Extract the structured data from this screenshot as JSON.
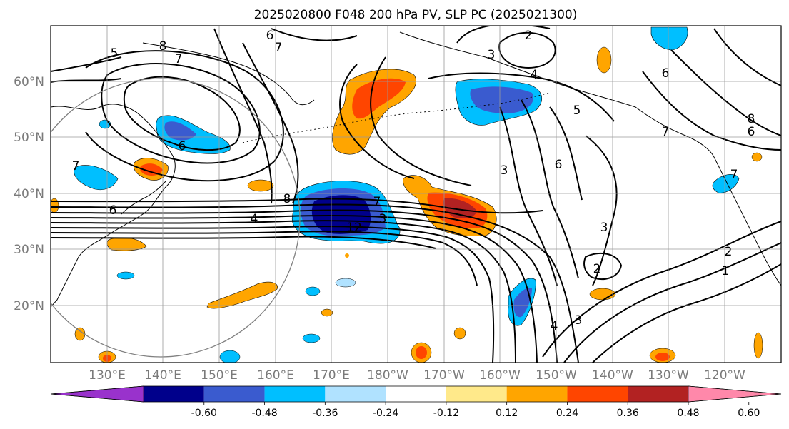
{
  "title": "2025020800 F048 200 hPa PV, SLP PC (2025021300)",
  "lat_labels": [
    "60°N",
    "50°N",
    "40°N",
    "30°N",
    "20°N"
  ],
  "lon_labels": [
    "130°E",
    "140°E",
    "150°E",
    "160°E",
    "170°E",
    "180°W",
    "170°W",
    "160°W",
    "150°W",
    "140°W",
    "130°W",
    "120°W"
  ],
  "colorbar": {
    "colors": [
      "#9932cc",
      "#00008b",
      "#3a5bcf",
      "#00bfff",
      "#b0e2ff",
      "#ffffff",
      "#ffe98a",
      "#ffa500",
      "#ff4500",
      "#b22222",
      "#ff88aa"
    ],
    "tick_labels": [
      "-0.60",
      "-0.48",
      "-0.36",
      "-0.24",
      "-0.12",
      "0.12",
      "0.24",
      "0.36",
      "0.48",
      "0.60"
    ]
  },
  "contour_labels": [
    "5",
    "8",
    "7",
    "6",
    "7",
    "6",
    "2",
    "3",
    "4",
    "5",
    "6",
    "7",
    "8",
    "6",
    "4",
    "8",
    "3",
    "6",
    "3",
    "2",
    "4",
    "3",
    "1",
    "2",
    "7",
    "6",
    "7",
    "12",
    "3",
    "7"
  ]
}
